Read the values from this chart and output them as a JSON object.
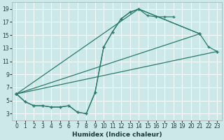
{
  "xlabel": "Humidex (Indice chaleur)",
  "bg_color": "#cce8e8",
  "grid_color": "#ffffff",
  "line_color": "#2a7a6a",
  "xlim": [
    -0.5,
    23.5
  ],
  "ylim": [
    2.0,
    20.0
  ],
  "xticks": [
    0,
    1,
    2,
    3,
    4,
    5,
    6,
    7,
    8,
    9,
    10,
    11,
    12,
    13,
    14,
    15,
    16,
    17,
    18,
    19,
    20,
    21,
    22,
    23
  ],
  "yticks": [
    3,
    5,
    7,
    9,
    11,
    13,
    15,
    17,
    19
  ],
  "line1_x": [
    0,
    1,
    2,
    3,
    4,
    5,
    6,
    7,
    8,
    9,
    10,
    11,
    12,
    13,
    14,
    15,
    16,
    17,
    18
  ],
  "line1_y": [
    6,
    4.8,
    4.2,
    4.2,
    4.0,
    4.0,
    4.2,
    3.2,
    3.0,
    6.2,
    13.2,
    15.5,
    17.5,
    18.5,
    19.0,
    18.0,
    17.8,
    17.8,
    17.8
  ],
  "line2_x": [
    0,
    1,
    2,
    3,
    4,
    5,
    6,
    7,
    8,
    9,
    10,
    11,
    12,
    13,
    14,
    21
  ],
  "line2_y": [
    6,
    4.8,
    4.2,
    4.2,
    4.0,
    4.0,
    4.2,
    3.2,
    3.0,
    6.2,
    13.2,
    15.5,
    17.5,
    18.5,
    19.0,
    15.2
  ],
  "line3_x": [
    0,
    21
  ],
  "line3_y": [
    6,
    15.2
  ],
  "line4_x": [
    0,
    14,
    21,
    22,
    23
  ],
  "line4_y": [
    6,
    19.0,
    15.2,
    13.2,
    12.5
  ],
  "line5_x": [
    0,
    23
  ],
  "line5_y": [
    6,
    12.5
  ]
}
